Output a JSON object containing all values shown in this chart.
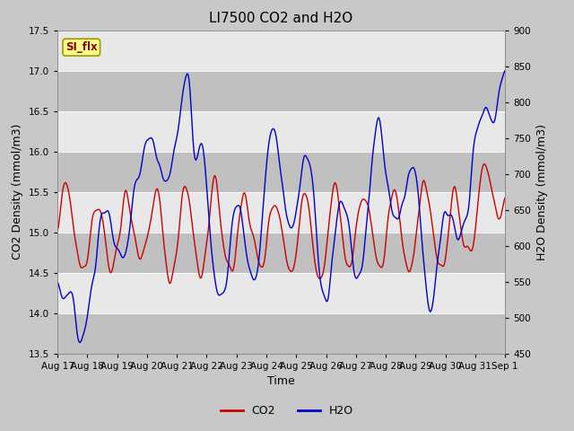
{
  "title": "LI7500 CO2 and H2O",
  "xlabel": "Time",
  "ylabel_left": "CO2 Density (mmol/m3)",
  "ylabel_right": "H2O Density (mmol/m3)",
  "ylim_left": [
    13.5,
    17.5
  ],
  "ylim_right": [
    450,
    900
  ],
  "yticks_left": [
    13.5,
    14.0,
    14.5,
    15.0,
    15.5,
    16.0,
    16.5,
    17.0,
    17.5
  ],
  "yticks_right": [
    450,
    500,
    550,
    600,
    650,
    700,
    750,
    800,
    850,
    900
  ],
  "xtick_labels": [
    "Aug 17",
    "Aug 18",
    "Aug 19",
    "Aug 20",
    "Aug 21",
    "Aug 22",
    "Aug 23",
    "Aug 24",
    "Aug 25",
    "Aug 26",
    "Aug 27",
    "Aug 28",
    "Aug 29",
    "Aug 30",
    "Aug 31",
    "Sep 1"
  ],
  "co2_color": "#cc0000",
  "h2o_color": "#0000cc",
  "legend_co2": "CO2",
  "legend_h2o": "H2O",
  "si_flx_label": "SI_flx",
  "fig_bg_color": "#c8c8c8",
  "plot_bg_color": "#e8e8e8",
  "band_light": "#d8d8d8",
  "band_dark": "#c0c0c0",
  "title_fontsize": 11,
  "axis_fontsize": 9,
  "tick_fontsize": 7.5,
  "legend_fontsize": 9,
  "line_width": 1.0,
  "n_points": 480
}
